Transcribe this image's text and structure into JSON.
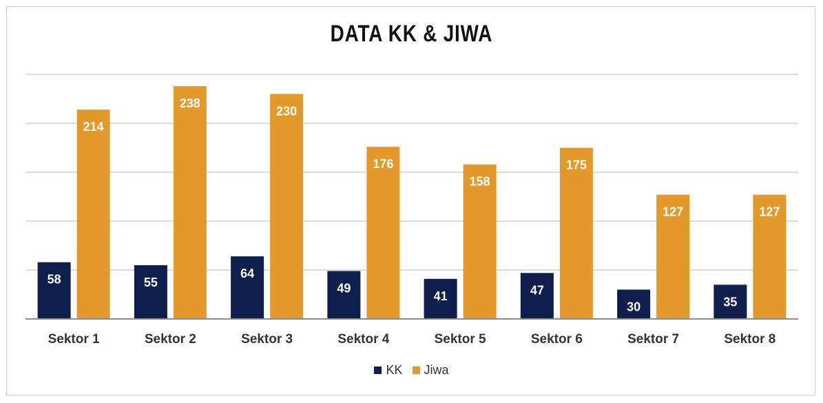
{
  "chart_data": {
    "type": "bar",
    "title": "DATA KK & JIWA",
    "categories": [
      "Sektor 1",
      "Sektor 2",
      "Sektor 3",
      "Sektor 4",
      "Sektor 5",
      "Sektor 6",
      "Sektor 7",
      "Sektor 8"
    ],
    "series": [
      {
        "name": "KK",
        "color": "#0f1f4d",
        "values": [
          58,
          55,
          64,
          49,
          41,
          47,
          30,
          35
        ]
      },
      {
        "name": "Jiwa",
        "color": "#e39a2a",
        "values": [
          214,
          238,
          230,
          176,
          158,
          175,
          127,
          127
        ]
      }
    ],
    "ylim": [
      0,
      250
    ],
    "grid": true,
    "legend_position": "bottom",
    "data_labels": true
  }
}
